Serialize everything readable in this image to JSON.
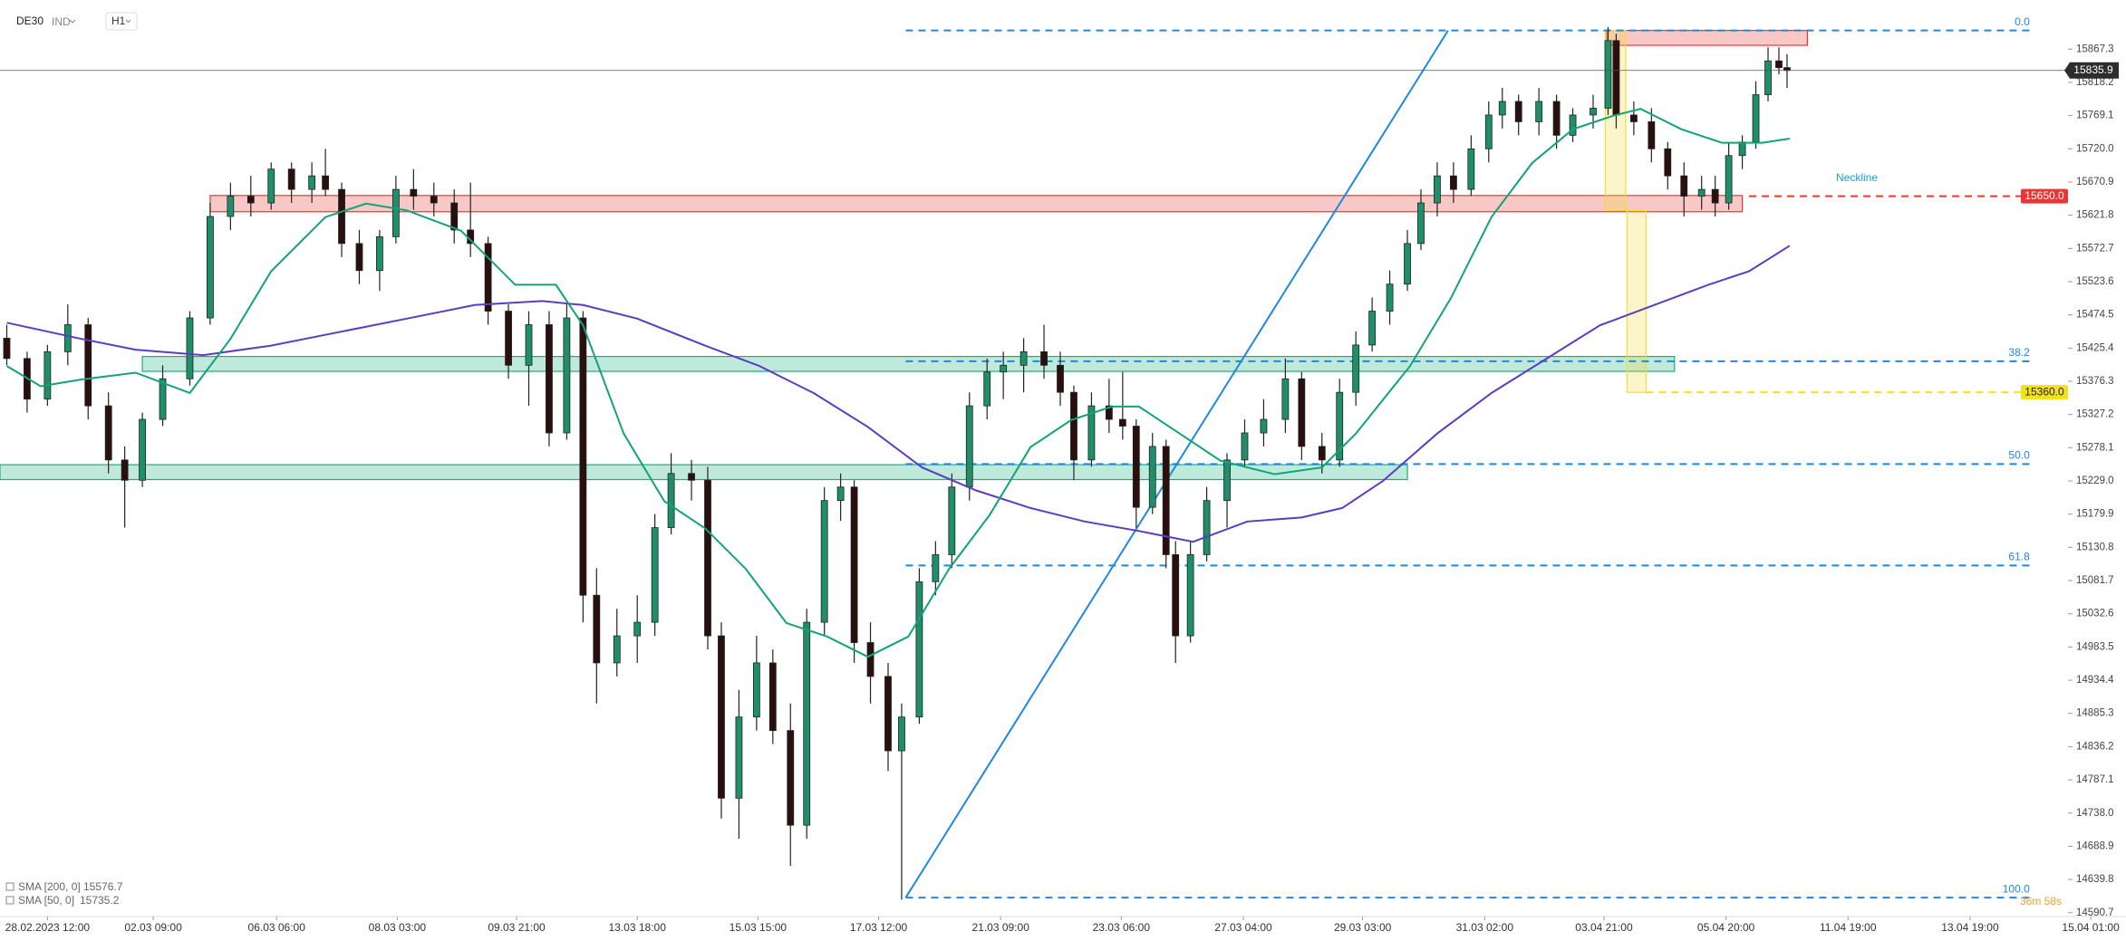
{
  "chart_data": {
    "type": "candlestick",
    "symbol": "DE30",
    "market": "IND",
    "interval": "H1",
    "x": [
      -15,
      -7.5,
      0,
      7.5,
      15,
      22.5,
      28.5,
      35,
      42.5,
      52.5,
      60,
      67.5,
      75,
      82.5,
      90,
      97.5,
      102.5,
      108.5,
      115,
      122.5,
      128.5,
      135,
      142.5,
      150,
      156,
      162.5,
      170,
      177.5,
      185,
      191.5,
      197.5,
      202.5,
      210,
      217.5,
      224,
      230,
      237.5,
      243.5,
      248.5,
      255,
      261.5,
      267.5,
      274,
      280,
      286.5,
      292.5,
      297.5,
      303.5,
      310,
      315,
      321.5,
      327.5,
      333.5,
      340,
      346.5,
      352.5,
      360,
      367.5,
      373.5,
      378.5,
      385,
      391.5,
      396.5,
      401.5,
      407.5,
      412.5,
      416,
      421.5,
      427.5,
      435,
      441.5,
      448.5,
      456.5,
      462.5,
      470,
      476.5,
      482.5,
      488.5,
      495,
      501.5,
      506.5,
      512.5,
      518.5,
      525,
      531.5,
      536.5,
      542.5,
      550,
      556.5,
      562.5,
      570,
      575.5,
      578.5,
      585,
      591.5,
      597.5,
      603.5,
      610,
      615,
      620,
      625,
      630,
      634.5,
      638.5,
      641.5
    ],
    "open": [
      15440,
      15410,
      15350,
      15420,
      15460,
      15340,
      15260,
      15230,
      15320,
      15380,
      15470,
      15620,
      15650,
      15640,
      15690,
      15660,
      15680,
      15660,
      15580,
      15540,
      15590,
      15660,
      15650,
      15640,
      15600,
      15580,
      15480,
      15400,
      15460,
      15300,
      15470,
      15060,
      14960,
      15000,
      15020,
      15160,
      15240,
      15230,
      15000,
      14760,
      14880,
      14960,
      14860,
      14720,
      15020,
      15200,
      15220,
      14990,
      14940,
      14830,
      14880,
      15080,
      15120,
      15220,
      15340,
      15390,
      15400,
      15420,
      15400,
      15360,
      15260,
      15340,
      15320,
      15310,
      15190,
      15280,
      15120,
      15000,
      15120,
      15200,
      15260,
      15300,
      15320,
      15380,
      15280,
      15260,
      15360,
      15430,
      15480,
      15520,
      15580,
      15640,
      15680,
      15660,
      15720,
      15770,
      15790,
      15760,
      15790,
      15740,
      15770,
      15780,
      15880,
      15770,
      15760,
      15720,
      15680,
      15650,
      15660,
      15640,
      15710,
      15730,
      15800,
      15850,
      15840
    ],
    "high": [
      15460,
      15420,
      15430,
      15490,
      15470,
      15360,
      15280,
      15330,
      15400,
      15480,
      15640,
      15670,
      15680,
      15700,
      15700,
      15700,
      15720,
      15670,
      15600,
      15600,
      15680,
      15690,
      15670,
      15660,
      15670,
      15590,
      15490,
      15480,
      15480,
      15490,
      15480,
      15100,
      15040,
      15060,
      15180,
      15270,
      15260,
      15250,
      15020,
      14920,
      15000,
      14980,
      14900,
      15040,
      15220,
      15240,
      15230,
      15020,
      14960,
      14900,
      15100,
      15140,
      15240,
      15360,
      15410,
      15420,
      15440,
      15460,
      15420,
      15370,
      15360,
      15380,
      15390,
      15320,
      15300,
      15290,
      15140,
      15140,
      15220,
      15270,
      15320,
      15350,
      15410,
      15390,
      15300,
      15380,
      15450,
      15500,
      15540,
      15600,
      15660,
      15700,
      15700,
      15740,
      15790,
      15810,
      15800,
      15810,
      15800,
      15780,
      15800,
      15900,
      15890,
      15790,
      15780,
      15730,
      15700,
      15680,
      15680,
      15730,
      15740,
      15820,
      15870,
      15870,
      15860
    ],
    "low": [
      15400,
      15330,
      15340,
      15400,
      15320,
      15240,
      15160,
      15220,
      15310,
      15370,
      15460,
      15600,
      15620,
      15630,
      15640,
      15640,
      15650,
      15560,
      15520,
      15510,
      15580,
      15630,
      15620,
      15580,
      15560,
      15460,
      15380,
      15340,
      15280,
      15290,
      15020,
      14900,
      14940,
      14960,
      15000,
      15150,
      15200,
      14980,
      14730,
      14700,
      14860,
      14840,
      14660,
      14700,
      15000,
      15170,
      14960,
      14900,
      14800,
      14610,
      14870,
      15060,
      15100,
      15200,
      15320,
      15350,
      15360,
      15380,
      15340,
      15230,
      15250,
      15300,
      15290,
      15160,
      15180,
      15100,
      14960,
      14990,
      15110,
      15160,
      15250,
      15280,
      15300,
      15260,
      15240,
      15250,
      15340,
      15420,
      15460,
      15510,
      15570,
      15620,
      15640,
      15650,
      15700,
      15750,
      15740,
      15740,
      15720,
      15730,
      15750,
      15770,
      15750,
      15740,
      15700,
      15660,
      15620,
      15630,
      15620,
      15630,
      15690,
      15720,
      15790,
      15830,
      15810
    ],
    "close": [
      15410,
      15350,
      15420,
      15460,
      15340,
      15260,
      15230,
      15320,
      15380,
      15470,
      15620,
      15650,
      15640,
      15690,
      15660,
      15680,
      15660,
      15580,
      15540,
      15590,
      15660,
      15650,
      15640,
      15600,
      15580,
      15480,
      15400,
      15460,
      15300,
      15470,
      15060,
      14960,
      15000,
      15020,
      15160,
      15240,
      15230,
      15000,
      14760,
      14880,
      14960,
      14860,
      14720,
      15020,
      15200,
      15220,
      14990,
      14940,
      14830,
      14880,
      15080,
      15120,
      15220,
      15340,
      15390,
      15400,
      15420,
      15400,
      15360,
      15260,
      15340,
      15320,
      15310,
      15190,
      15280,
      15120,
      15000,
      15120,
      15200,
      15260,
      15300,
      15320,
      15380,
      15280,
      15260,
      15360,
      15430,
      15480,
      15520,
      15580,
      15640,
      15680,
      15660,
      15720,
      15770,
      15790,
      15760,
      15790,
      15740,
      15770,
      15780,
      15880,
      15770,
      15760,
      15720,
      15680,
      15650,
      15660,
      15640,
      15710,
      15730,
      15800,
      15850,
      15840,
      15835.9
    ],
    "up_color": "#1f8f6a",
    "down_color": "#2a0f0f",
    "xlim": [
      -17.5,
      766.5
    ],
    "xticks": [
      {
        "value": 0,
        "label": "28.02.2023  12:00"
      },
      {
        "value": 39,
        "label": "02.03  09:00"
      },
      {
        "value": 84.5,
        "label": "06.03  06:00"
      },
      {
        "value": 129,
        "label": "08.03  03:00"
      },
      {
        "value": 173,
        "label": "09.03  21:00"
      },
      {
        "value": 217.5,
        "label": "13.03  18:00"
      },
      {
        "value": 262,
        "label": "15.03  15:00"
      },
      {
        "value": 306.5,
        "label": "17.03  12:00"
      },
      {
        "value": 351.5,
        "label": "21.03  09:00"
      },
      {
        "value": 396,
        "label": "23.03  06:00"
      },
      {
        "value": 441,
        "label": "27.03  04:00"
      },
      {
        "value": 485,
        "label": "29.03  03:00"
      },
      {
        "value": 530,
        "label": "31.03  02:00"
      },
      {
        "value": 574,
        "label": "03.04  21:00"
      },
      {
        "value": 619,
        "label": "05.04  20:00"
      },
      {
        "value": 664,
        "label": "11.04  19:00"
      },
      {
        "value": 709,
        "label": "13.04  19:00"
      },
      {
        "value": 753.5,
        "label": "15.04  01:00"
      }
    ],
    "ylim": [
      14585,
      15940
    ],
    "yticks": [
      15867.3,
      15818.2,
      15769.1,
      {
        "value": 15720,
        "label": "15720.0"
      },
      15670.9,
      15621.8,
      15572.7,
      15523.6,
      15474.5,
      15425.4,
      15376.3,
      15327.2,
      15278.1,
      {
        "value": 15229,
        "label": "15229.0"
      },
      15179.9,
      15130.8,
      15081.7,
      15032.6,
      14983.5,
      14934.4,
      14885.3,
      14836.2,
      14787.1,
      {
        "value": 14738,
        "label": "14738.0"
      },
      14688.9,
      14639.8,
      14590.7
    ],
    "series": [
      {
        "name": "SMA [200, 0]",
        "color": "#5b3cc4",
        "x": [
          -15,
          12.5,
          32.5,
          57.5,
          82.5,
          107.5,
          132.5,
          157.5,
          182.5,
          197.5,
          217.5,
          242.5,
          262.5,
          282.5,
          302.5,
          322.5,
          342.5,
          362.5,
          382.5,
          402.5,
          422.5,
          442.5,
          462.5,
          477.5,
          492.5,
          512.5,
          532.5,
          552.5,
          572.5,
          592.5,
          612.5,
          627.5,
          642.5
        ],
        "values": [
          15463,
          15439,
          15423,
          15415,
          15429,
          15449,
          15469,
          15489,
          15495,
          15489,
          15469,
          15429,
          15399,
          15359,
          15309,
          15249,
          15215,
          15189,
          15169,
          15155,
          15139,
          15169,
          15175,
          15189,
          15229,
          15299,
          15359,
          15409,
          15459,
          15489,
          15519,
          15539,
          15576.7
        ]
      },
      {
        "name": "SMA [50, 0]",
        "color": "#12a37a",
        "x": [
          -15,
          -2.5,
          12.5,
          32.5,
          52.5,
          67.5,
          82.5,
          102.5,
          117.5,
          132.5,
          152.5,
          172.5,
          187.5,
          197.5,
          212.5,
          227.5,
          242.5,
          257.5,
          272.5,
          287.5,
          302.5,
          317.5,
          332.5,
          347.5,
          362.5,
          377.5,
          392.5,
          402.5,
          417.5,
          432.5,
          452.5,
          470,
          482.5,
          502.5,
          517.5,
          532.5,
          547.5,
          562.5,
          577.5,
          587.5,
          602.5,
          617.5,
          632.5,
          642.5
        ],
        "values": [
          15399,
          15369,
          15379,
          15389,
          15359,
          15439,
          15539,
          15619,
          15639,
          15629,
          15599,
          15519,
          15519,
          15459,
          15299,
          15199,
          15159,
          15099,
          15019,
          14999,
          14969,
          14999,
          15099,
          15179,
          15279,
          15319,
          15339,
          15339,
          15299,
          15259,
          15239,
          15249,
          15299,
          15399,
          15499,
          15619,
          15699,
          15749,
          15769,
          15779,
          15749,
          15729,
          15729,
          15735.2
        ]
      }
    ],
    "fib": {
      "color": "#1e88e5",
      "x": [
        316.5,
        516.5
      ],
      "values": [
        14613,
        15895
      ],
      "levels_x": [
        316.5,
        731
      ],
      "levels": [
        {
          "label": "0.0",
          "value": 15895
        },
        {
          "label": "38.2",
          "value": 15406
        },
        {
          "label": "50.0",
          "value": 15254
        },
        {
          "label": "61.8",
          "value": 15104
        },
        {
          "label": "100.0",
          "value": 14613
        }
      ]
    },
    "levels": [
      {
        "value": 15650,
        "label": "15650.0",
        "color": "#e53935",
        "from_x": 627.5
      },
      {
        "value": 15360,
        "label": "15360.0",
        "color": "#f2e21b",
        "from_x": 589.5
      }
    ],
    "zones": [
      {
        "x": [
          60,
          625
        ],
        "y": [
          15627,
          15651
        ],
        "color": "#e53935"
      },
      {
        "x": [
          575,
          649
        ],
        "y": [
          15873,
          15895
        ],
        "color": "#e53935"
      },
      {
        "x": [
          35,
          600
        ],
        "y": [
          15391,
          15413
        ],
        "color": "#18b07c"
      },
      {
        "x": [
          -17.5,
          501.5
        ],
        "y": [
          15231,
          15253
        ],
        "color": "#18b07c"
      },
      {
        "x": [
          574.5,
          582
        ],
        "y": [
          15629,
          15895
        ],
        "color": "#f5dc3c"
      },
      {
        "x": [
          582.5,
          589.5
        ],
        "y": [
          15360,
          15629
        ],
        "color": "#f5dc3c"
      }
    ],
    "annotation": "Neckline",
    "countdown": "36m 58s"
  }
}
